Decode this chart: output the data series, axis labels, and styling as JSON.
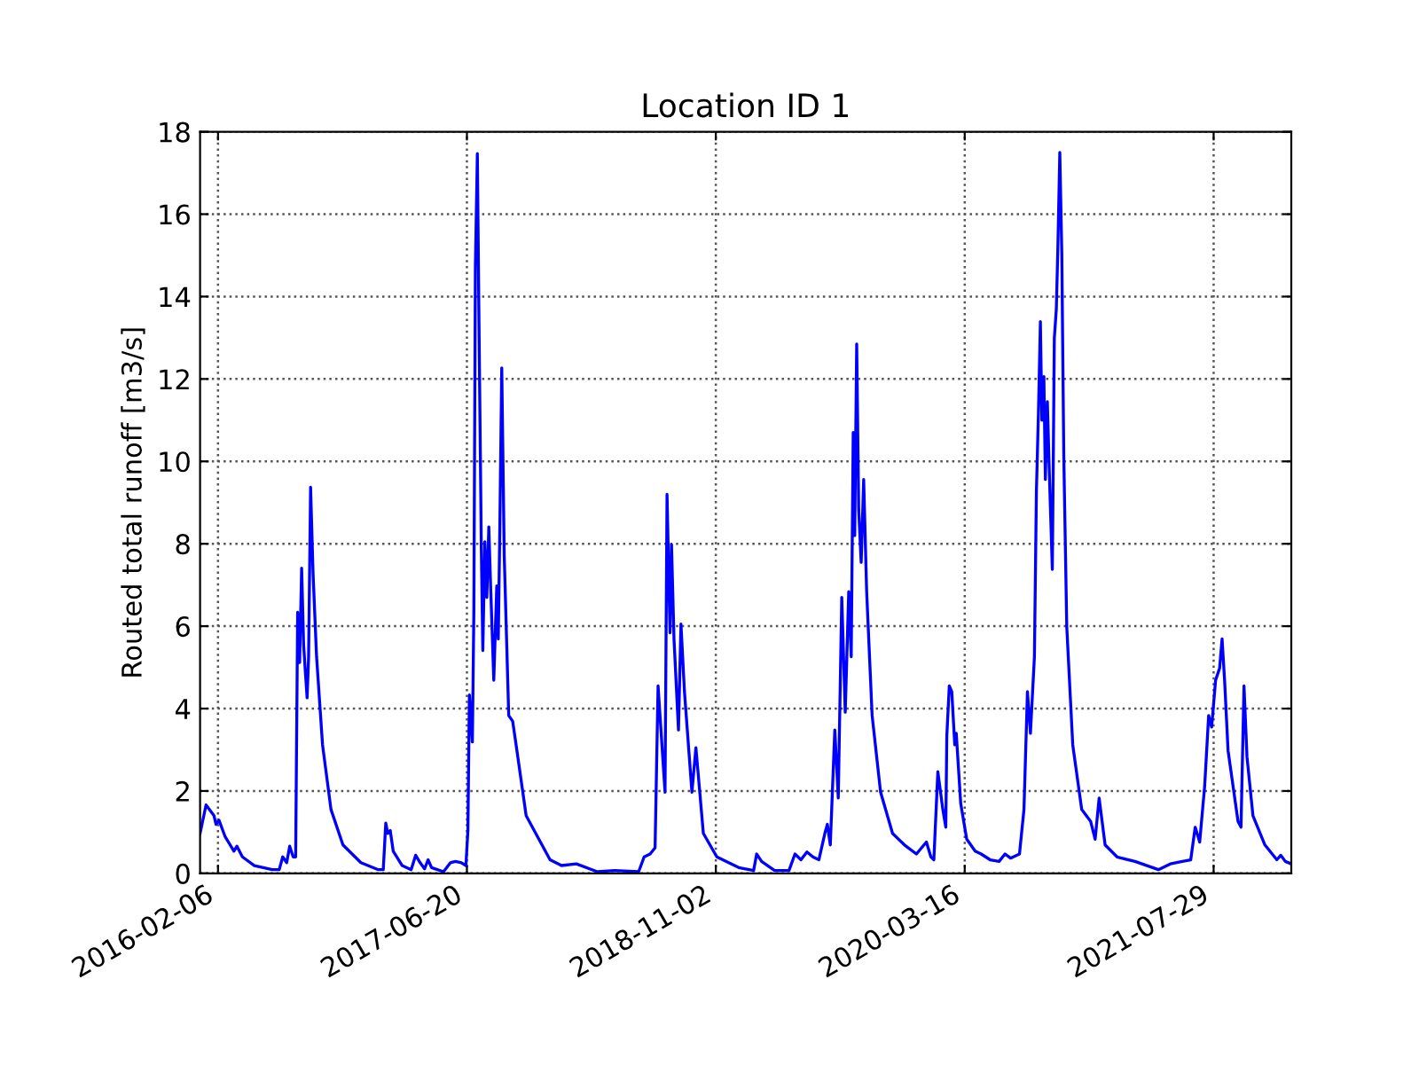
{
  "chart_data": {
    "type": "line",
    "title": "Location ID 1",
    "ylabel": "Routed total runoff [m3/s]",
    "xlim": [
      "2016-01-01",
      "2022-01-01"
    ],
    "xticks": [
      "2016-02-06",
      "2017-06-20",
      "2018-11-02",
      "2020-03-16",
      "2021-07-29"
    ],
    "ylim": [
      0,
      18
    ],
    "yticks": [
      0,
      2,
      4,
      6,
      8,
      10,
      12,
      14,
      16,
      18
    ],
    "grid": true,
    "line_style": "solid",
    "series": [
      {
        "color": "#0000ff",
        "x": [
          "2016-01-01",
          "2016-01-13",
          "2016-01-29",
          "2016-02-02",
          "2016-02-08",
          "2016-02-20",
          "2016-03-09",
          "2016-03-15",
          "2016-03-26",
          "2016-04-19",
          "2016-05-25",
          "2016-06-08",
          "2016-06-15",
          "2016-06-23",
          "2016-06-29",
          "2016-07-06",
          "2016-07-11",
          "2016-07-15",
          "2016-07-19",
          "2016-07-23",
          "2016-07-27",
          "2016-07-30",
          "2016-08-03",
          "2016-08-06",
          "2016-08-10",
          "2016-08-15",
          "2016-08-22",
          "2016-09-03",
          "2016-09-20",
          "2016-10-14",
          "2016-11-19",
          "2016-12-24",
          "2017-01-03",
          "2017-01-08",
          "2017-01-12",
          "2017-01-17",
          "2017-01-23",
          "2017-02-10",
          "2017-02-28",
          "2017-03-09",
          "2017-03-18",
          "2017-03-27",
          "2017-04-03",
          "2017-04-10",
          "2017-05-04",
          "2017-05-18",
          "2017-05-28",
          "2017-06-09",
          "2017-06-18",
          "2017-06-22",
          "2017-06-25",
          "2017-07-01",
          "2017-07-04",
          "2017-07-07",
          "2017-07-11",
          "2017-07-14",
          "2017-07-19",
          "2017-07-22",
          "2017-07-26",
          "2017-07-30",
          "2017-08-03",
          "2017-08-07",
          "2017-08-13",
          "2017-08-19",
          "2017-08-22",
          "2017-08-25",
          "2017-08-29",
          "2017-09-03",
          "2017-09-12",
          "2017-09-20",
          "2017-09-26",
          "2017-10-17",
          "2017-12-04",
          "2017-12-27",
          "2018-01-26",
          "2018-03-09",
          "2018-04-13",
          "2018-05-31",
          "2018-06-11",
          "2018-06-23",
          "2018-07-03",
          "2018-07-09",
          "2018-07-23",
          "2018-07-27",
          "2018-08-02",
          "2018-08-05",
          "2018-08-10",
          "2018-08-19",
          "2018-08-24",
          "2018-08-31",
          "2018-09-15",
          "2018-09-23",
          "2018-10-08",
          "2018-11-04",
          "2018-12-18",
          "2019-01-17",
          "2019-01-23",
          "2019-02-02",
          "2019-02-28",
          "2019-03-29",
          "2019-04-10",
          "2019-04-22",
          "2019-05-04",
          "2019-05-16",
          "2019-05-28",
          "2019-06-09",
          "2019-06-14",
          "2019-06-20",
          "2019-06-29",
          "2019-07-06",
          "2019-07-13",
          "2019-07-20",
          "2019-07-27",
          "2019-08-01",
          "2019-08-05",
          "2019-08-08",
          "2019-08-12",
          "2019-08-16",
          "2019-08-21",
          "2019-08-26",
          "2019-09-01",
          "2019-09-12",
          "2019-09-29",
          "2019-10-23",
          "2019-11-16",
          "2019-12-10",
          "2019-12-30",
          "2020-01-08",
          "2020-01-14",
          "2020-01-22",
          "2020-02-01",
          "2020-02-07",
          "2020-02-09",
          "2020-02-14",
          "2020-02-19",
          "2020-02-25",
          "2020-02-28",
          "2020-03-08",
          "2020-03-20",
          "2020-04-06",
          "2020-04-18",
          "2020-05-06",
          "2020-05-24",
          "2020-06-05",
          "2020-06-16",
          "2020-07-04",
          "2020-07-13",
          "2020-07-20",
          "2020-07-26",
          "2020-08-03",
          "2020-08-07",
          "2020-08-11",
          "2020-08-15",
          "2020-08-18",
          "2020-08-22",
          "2020-08-25",
          "2020-08-29",
          "2020-09-02",
          "2020-09-08",
          "2020-09-12",
          "2020-09-16",
          "2020-09-19",
          "2020-09-23",
          "2020-09-27",
          "2020-10-01",
          "2020-10-07",
          "2020-10-19",
          "2020-11-06",
          "2020-11-24",
          "2020-12-03",
          "2020-12-11",
          "2020-12-23",
          "2021-01-16",
          "2021-02-21",
          "2021-04-09",
          "2021-05-03",
          "2021-05-27",
          "2021-06-13",
          "2021-06-22",
          "2021-07-01",
          "2021-07-11",
          "2021-07-19",
          "2021-07-25",
          "2021-08-02",
          "2021-08-10",
          "2021-08-15",
          "2021-08-20",
          "2021-08-27",
          "2021-09-16",
          "2021-09-22",
          "2021-09-28",
          "2021-10-04",
          "2021-10-16",
          "2021-11-09",
          "2021-12-03",
          "2021-12-11",
          "2021-12-20",
          "2022-01-01"
        ],
        "values": [
          0.97,
          1.66,
          1.4,
          1.19,
          1.29,
          0.9,
          0.54,
          0.66,
          0.4,
          0.19,
          0.09,
          0.09,
          0.4,
          0.26,
          0.66,
          0.4,
          0.4,
          6.34,
          5.12,
          7.41,
          5.55,
          4.98,
          4.26,
          5.26,
          9.37,
          7.27,
          5.26,
          3.12,
          1.55,
          0.69,
          0.26,
          0.09,
          0.09,
          1.22,
          0.97,
          1.04,
          0.54,
          0.19,
          0.09,
          0.44,
          0.26,
          0.11,
          0.33,
          0.14,
          0.04,
          0.26,
          0.29,
          0.26,
          0.19,
          1.04,
          4.33,
          3.19,
          6.41,
          14.7,
          17.47,
          13.7,
          7.84,
          5.41,
          8.05,
          6.7,
          8.41,
          6.84,
          4.69,
          6.98,
          5.69,
          8.27,
          12.27,
          7.7,
          3.83,
          3.69,
          3.19,
          1.4,
          0.33,
          0.19,
          0.23,
          0.04,
          0.07,
          0.04,
          0.4,
          0.47,
          0.62,
          4.55,
          1.97,
          9.2,
          5.84,
          7.98,
          5.69,
          3.48,
          6.05,
          4.41,
          1.97,
          3.05,
          0.97,
          0.4,
          0.14,
          0.07,
          0.47,
          0.29,
          0.07,
          0.07,
          0.47,
          0.33,
          0.52,
          0.4,
          0.33,
          0.97,
          1.19,
          0.69,
          3.48,
          1.83,
          6.7,
          3.91,
          6.84,
          5.26,
          10.7,
          8.2,
          12.85,
          8.84,
          7.55,
          9.56,
          6.84,
          3.83,
          1.97,
          0.97,
          0.69,
          0.47,
          0.76,
          0.4,
          0.33,
          2.47,
          1.55,
          1.12,
          3.33,
          4.55,
          4.41,
          3.12,
          3.4,
          1.69,
          0.83,
          0.54,
          0.47,
          0.33,
          0.29,
          0.47,
          0.37,
          0.47,
          1.55,
          4.41,
          3.4,
          5.26,
          9.27,
          11.13,
          13.39,
          11.0,
          12.06,
          9.56,
          11.45,
          9.7,
          7.38,
          12.99,
          13.7,
          15.13,
          17.5,
          15.06,
          10.13,
          5.98,
          3.12,
          1.55,
          1.26,
          0.83,
          1.83,
          0.69,
          0.4,
          0.29,
          0.09,
          0.23,
          0.29,
          0.33,
          1.12,
          0.76,
          2.12,
          3.83,
          3.55,
          4.69,
          4.98,
          5.69,
          4.69,
          2.98,
          1.26,
          1.12,
          4.55,
          2.83,
          1.4,
          0.69,
          0.33,
          0.44,
          0.29,
          0.23
        ]
      }
    ]
  }
}
